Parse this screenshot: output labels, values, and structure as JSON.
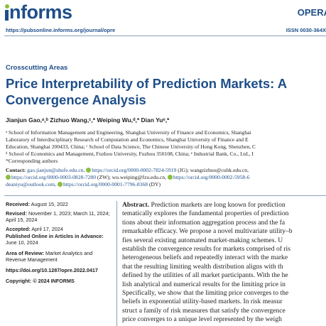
{
  "header": {
    "logo": "informs",
    "journal": "OPERA",
    "url": "https://pubsonline.informs.org/journal/opre",
    "issn": "ISSN 0030-364X"
  },
  "article": {
    "section": "Crosscutting Areas",
    "title": "Price Interpretability of Prediction Markets: A Convergence Analysis",
    "authors": "Jianjun Gao,ᵃ,ᵇ Zizhuo Wang,ᶜ,* Weiping Wu,ᵈ,* Dian Yuᵉ,*",
    "affiliations": [
      "ᵃ School of Information Management and Engineering, Shanghai University of Finance and Economics, Shanghai",
      "Laboratory of Interdisciplinary Research of Computation and Economics, Shanghai University of Finance and E",
      "Education, Shanghai 200433, China; ᶜ School of Data Science, The Chinese University of Hong Kong, Shenzhen, C",
      "ᵈ School of Economics and Management, Fuzhou University, Fuzhou 350108, China; ᵉ Industrial Bank, Co., Ltd., I",
      "*Corresponding authors"
    ],
    "contact_label": "Contact:",
    "contact_lines": [
      {
        "pre": "gao.jianjun@shufe.edu.cn, ",
        "orcid": "https://orcid.org/0000-0002-7824-5919",
        "post": " (JG); wangzizhuo@cuhk.edu.cn,"
      },
      {
        "pre": "",
        "orcid": "https://orcid.org/0000-0003-0828-7280",
        "post": " (ZW); wu.weiping@fzu.edu.cn, ",
        "orcid2": "https://orcid.org/0000-0002-5958-6"
      },
      {
        "pre": "deaniyu@outlook.com, ",
        "orcid": "https://orcid.org/0000-0001-7796-8368",
        "post": " (DY)"
      }
    ]
  },
  "meta": {
    "received_label": "Received:",
    "received": "August 15, 2022",
    "revised_label": "Revised:",
    "revised_1": "November 1, 2023; March 11, 2024;",
    "revised_2": "April 15, 2024",
    "accepted_label": "Accepted:",
    "accepted": "April 17, 2024",
    "published_label": "Published Online in Articles in Advance:",
    "published": "June 10, 2024",
    "area_label": "Area of Review:",
    "area_1": "Market Analytics and",
    "area_2": "Revenue Management",
    "doi": "https://doi.org/10.1287/opre.2022.0417",
    "copyright": "Copyright: © 2024 INFORMS"
  },
  "abstract": {
    "label": "Abstract.",
    "lines": [
      "Prediction markets are long known for prediction",
      "tematically explores the fundamental properties of prediction",
      "tions about their information aggregation process and the fa",
      "remarkable efficacy. We propose a novel multivariate utility–b",
      "fies several existing automated market-making schemes. U",
      "establish the convergence results for markets comprised of ris",
      "heterogeneous beliefs and repeatedly interact with the marke",
      "that the resulting limiting wealth distribution aligns with th",
      "defined by the utilities of all market participants. With the he",
      "lish analytical and numerical results for the limiting price in",
      "Specifically, we show that the limiting price converges to the",
      "beliefs in exponential utility-based markets. In risk measur",
      "struct a family of risk measures that satisfy the convergence",
      "price converges to a unique level represented by the weigh"
    ]
  },
  "colors": {
    "brand_blue": "#1d4e89",
    "orcid_green": "#8bbf3f"
  }
}
